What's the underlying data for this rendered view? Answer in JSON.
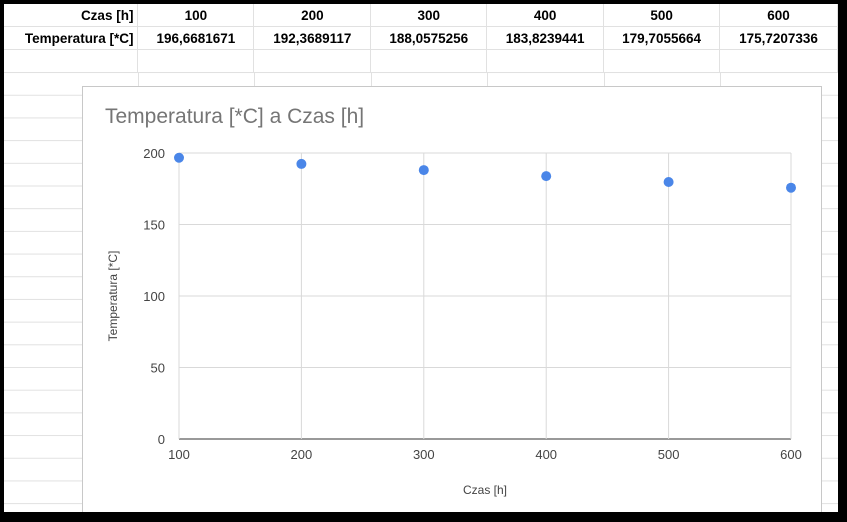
{
  "sheet": {
    "header_row": {
      "label": "Czas [h]",
      "values": [
        "100",
        "200",
        "300",
        "400",
        "500",
        "600"
      ]
    },
    "data_row": {
      "label": "Temperatura [*C]",
      "values": [
        "196,6681671",
        "192,3689117",
        "188,0575256",
        "183,8239441",
        "179,7055664",
        "175,7207336"
      ]
    }
  },
  "chart": {
    "title": "Temperatura [*C] a Czas [h]",
    "point_color": "#4a86e8"
  },
  "chart_data": {
    "type": "scatter",
    "title": "Temperatura [*C] a Czas [h]",
    "xlabel": "Czas [h]",
    "ylabel": "Temperatura [*C]",
    "x": [
      100,
      200,
      300,
      400,
      500,
      600
    ],
    "y": [
      196.6681671,
      192.3689117,
      188.0575256,
      183.8239441,
      179.7055664,
      175.7207336
    ],
    "xticks": [
      "100",
      "200",
      "300",
      "400",
      "500",
      "600"
    ],
    "yticks": [
      "0",
      "50",
      "100",
      "150",
      "200"
    ],
    "xlim": [
      100,
      600
    ],
    "ylim": [
      0,
      200
    ],
    "grid": true,
    "legend": "none"
  }
}
